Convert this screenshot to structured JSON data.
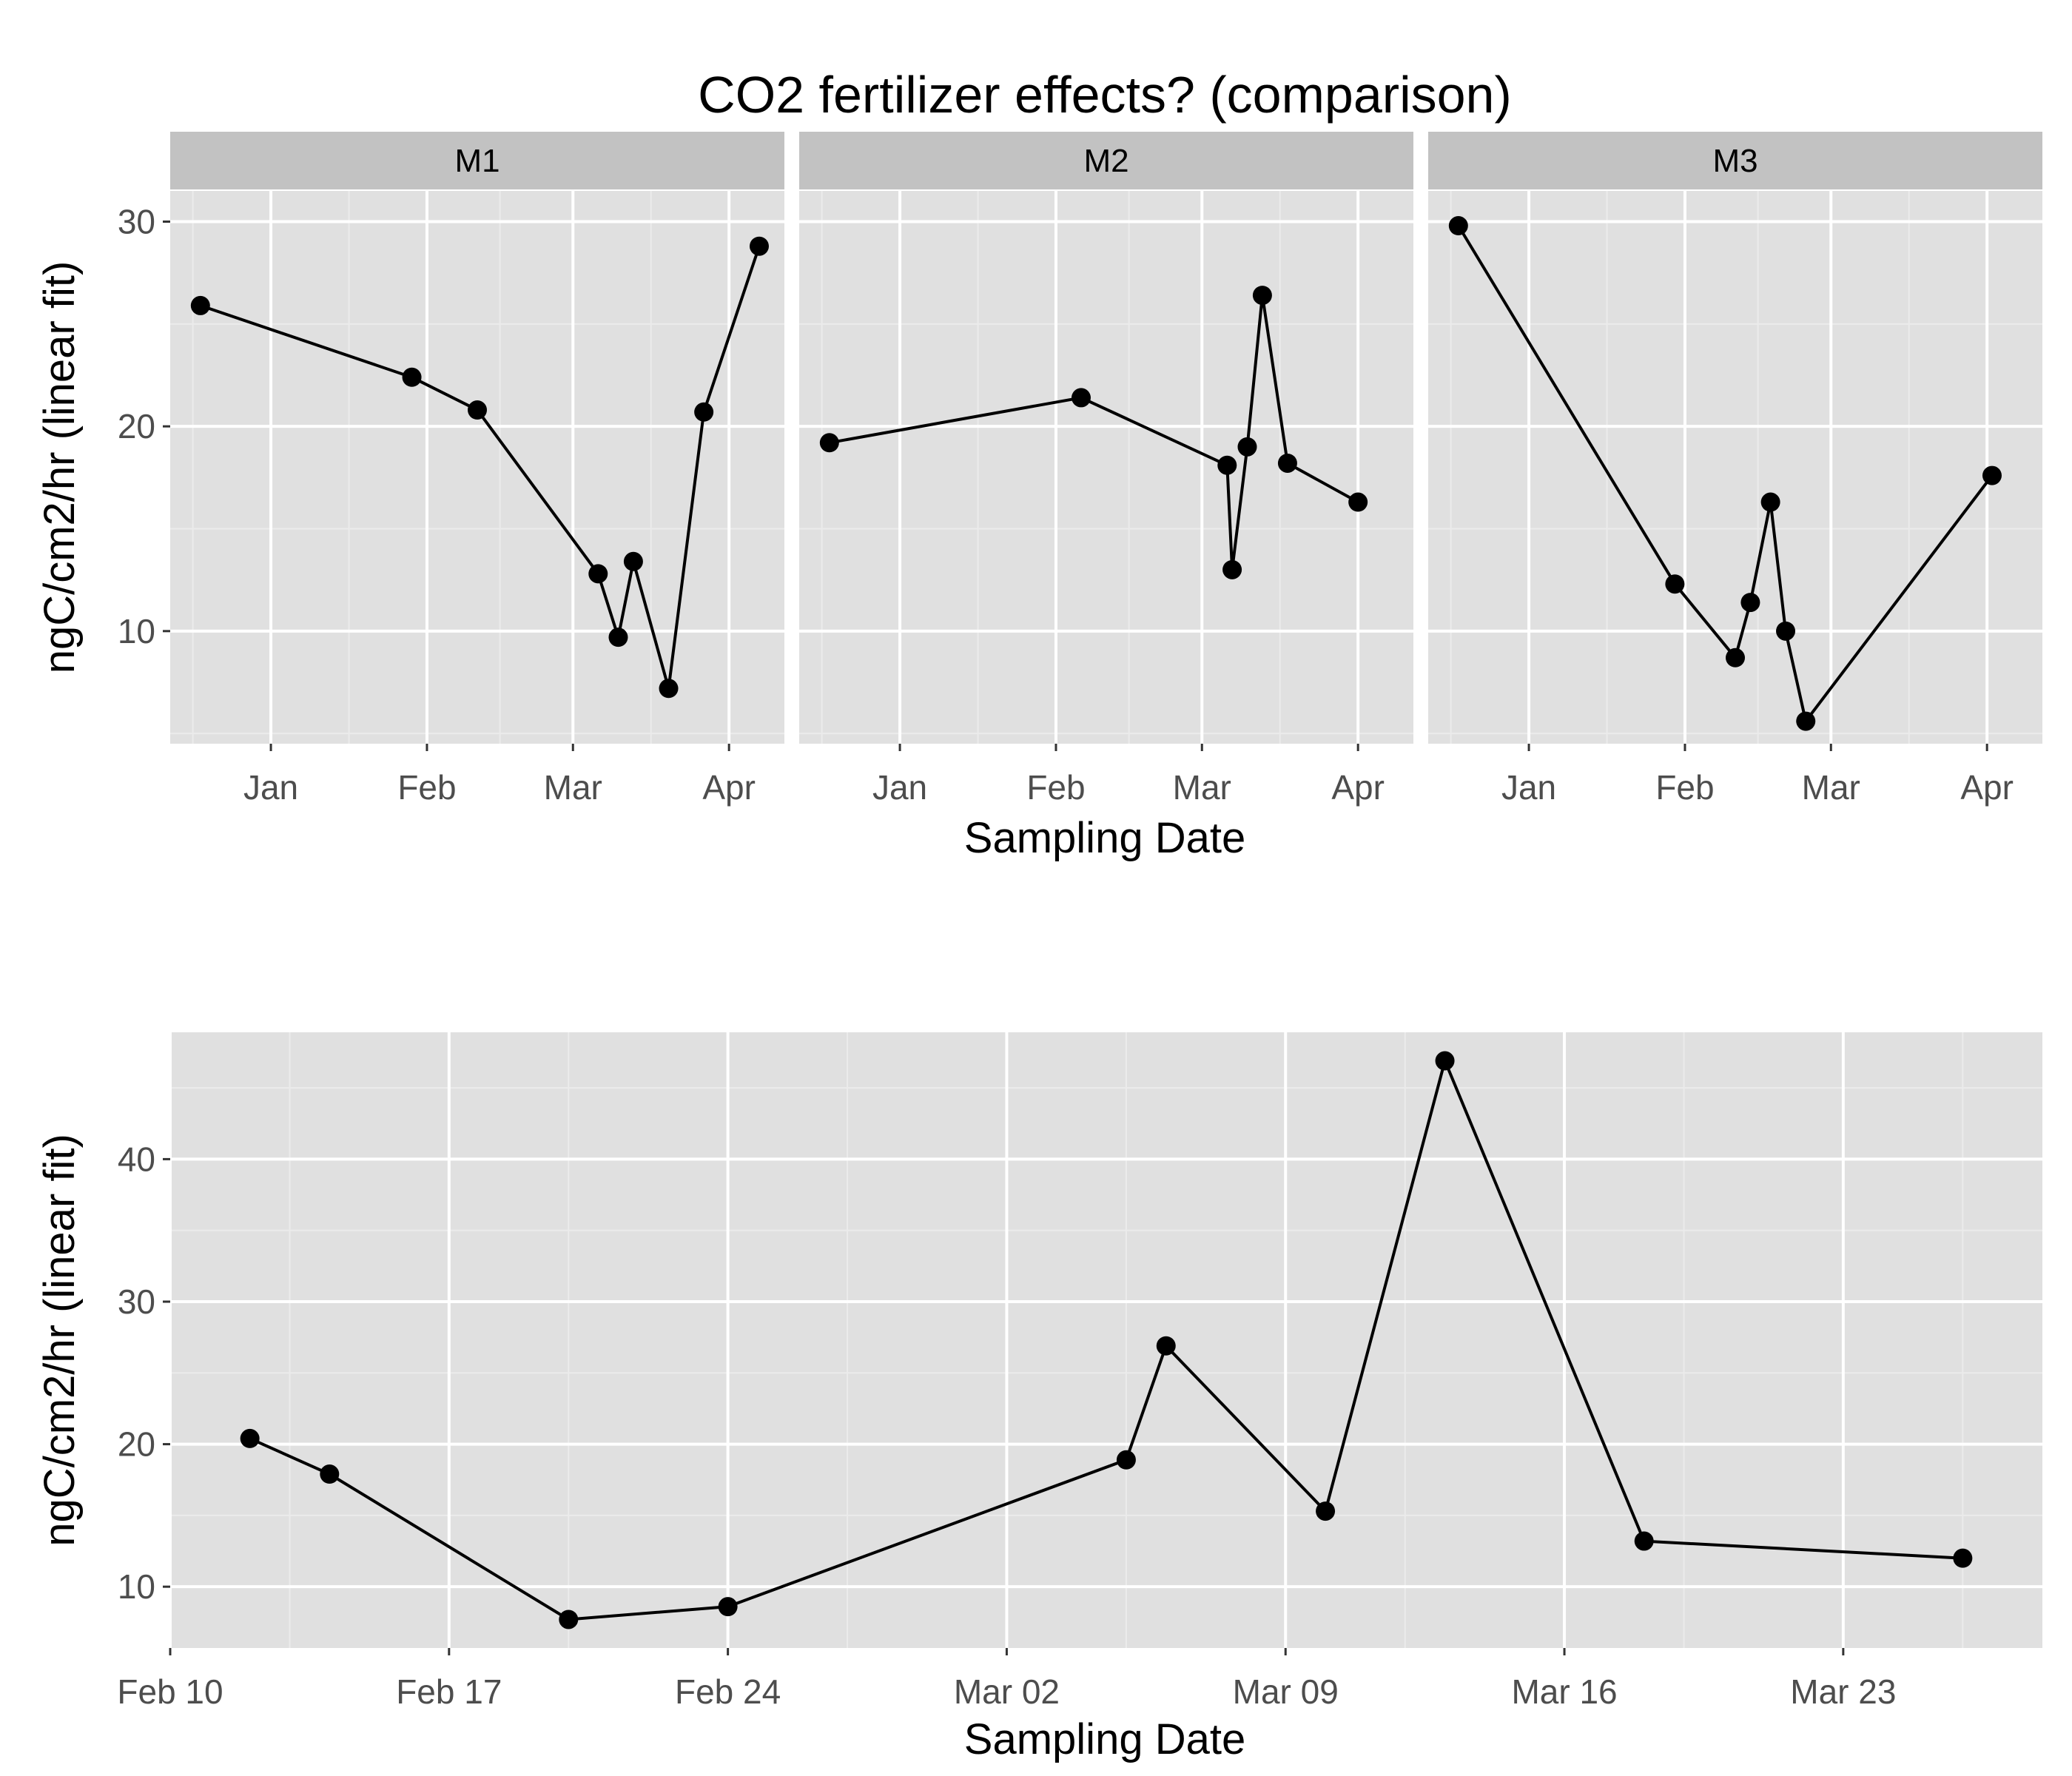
{
  "title": "CO2 fertilizer effects?  (comparison)",
  "colors": {
    "panel_bg": "#e0e0e0",
    "grid_major": "#ffffff",
    "grid_minor": "#ebebeb",
    "strip_bg": "#c2c2c2",
    "series": "#000000",
    "tick_text": "#4d4d4d"
  },
  "chart_data": [
    {
      "type": "line",
      "facet_by": "site",
      "xlabel": "Sampling Date",
      "ylabel": "ngC/cm2/hr (linear fit)",
      "x_tick_labels": [
        "Jan",
        "Feb",
        "Mar",
        "Apr"
      ],
      "y_ticks": [
        10,
        20,
        30
      ],
      "ylim": [
        4.5,
        31.5
      ],
      "grid": true,
      "panels": [
        {
          "name": "M1",
          "xlim": [
            "2011-12-12",
            "2012-04-12"
          ],
          "x": [
            "2011-12-18",
            "2012-01-29",
            "2012-02-11",
            "2012-03-06",
            "2012-03-10",
            "2012-03-13",
            "2012-03-20",
            "2012-03-27",
            "2012-04-07"
          ],
          "y": [
            25.9,
            22.4,
            20.8,
            12.8,
            9.7,
            13.4,
            7.2,
            20.7,
            28.8
          ]
        },
        {
          "name": "M2",
          "xlim": [
            "2011-12-12",
            "2012-04-12"
          ],
          "x": [
            "2011-12-18",
            "2012-02-06",
            "2012-03-06",
            "2012-03-07",
            "2012-03-10",
            "2012-03-13",
            "2012-03-18",
            "2012-04-01"
          ],
          "y": [
            19.2,
            21.4,
            18.1,
            13.0,
            19.0,
            26.4,
            18.2,
            16.3
          ]
        },
        {
          "name": "M3",
          "xlim": [
            "2011-12-12",
            "2012-04-12"
          ],
          "x": [
            "2011-12-18",
            "2012-01-30",
            "2012-02-11",
            "2012-02-14",
            "2012-02-18",
            "2012-02-21",
            "2012-02-25",
            "2012-04-02"
          ],
          "y": [
            29.8,
            12.3,
            8.7,
            11.4,
            16.3,
            10.0,
            5.6,
            17.6
          ]
        }
      ]
    },
    {
      "type": "line",
      "xlabel": "Sampling Date",
      "ylabel": "ngC/cm2/hr (linear fit)",
      "x_tick_labels": [
        "Feb 10",
        "Feb 17",
        "Feb 24",
        "Mar 03",
        "Mar 10",
        "Mar 17",
        "Mar 24"
      ],
      "y_ticks": [
        10,
        20,
        30,
        40
      ],
      "xlim": [
        "2012-02-10",
        "2012-03-28"
      ],
      "ylim": [
        5.7,
        48.9
      ],
      "grid": true,
      "x": [
        "2012-02-12",
        "2012-02-14",
        "2012-02-20",
        "2012-02-24",
        "2012-03-05",
        "2012-03-06",
        "2012-03-10",
        "2012-03-13",
        "2012-03-18",
        "2012-03-26"
      ],
      "y": [
        20.4,
        17.9,
        7.7,
        8.6,
        18.9,
        26.9,
        15.3,
        46.9,
        13.2,
        12.0
      ]
    }
  ]
}
